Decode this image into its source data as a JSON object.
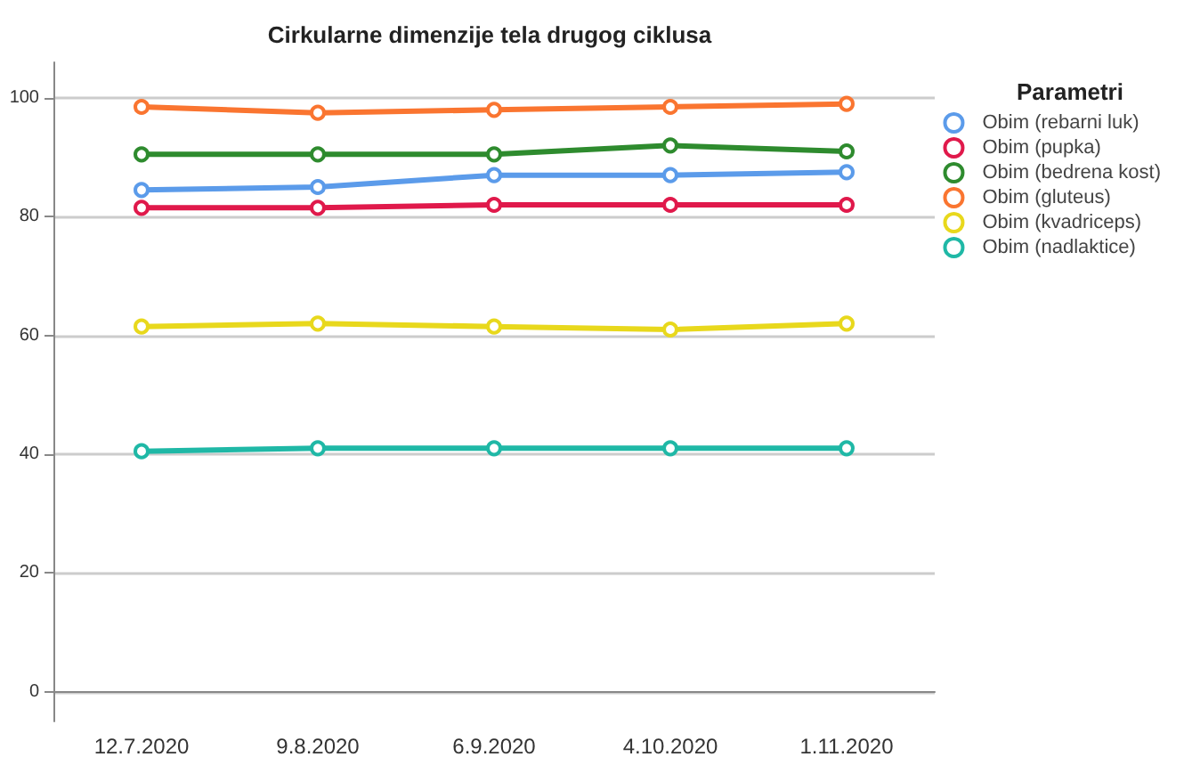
{
  "chart_data": {
    "type": "line",
    "title": "Cirkularne dimenzije tela drugog ciklusa",
    "legend_title": "Parametri",
    "categories": [
      "12.7.2020",
      "9.8.2020",
      "6.9.2020",
      "4.10.2020",
      "1.11.2020"
    ],
    "series": [
      {
        "name": "Obim (rebarni luk)",
        "color": "#5b9bea",
        "values": [
          84.5,
          85,
          87,
          87,
          87.5
        ]
      },
      {
        "name": "Obim (pupka)",
        "color": "#e0194b",
        "values": [
          81.5,
          81.5,
          82,
          82,
          82
        ]
      },
      {
        "name": "Obim (bedrena kost)",
        "color": "#2e8b2e",
        "values": [
          90.5,
          90.5,
          90.5,
          92,
          91
        ]
      },
      {
        "name": "Obim (gluteus)",
        "color": "#fa7530",
        "values": [
          98.5,
          97.5,
          98,
          98.5,
          99
        ]
      },
      {
        "name": "Obim (kvadriceps)",
        "color": "#e8d81c",
        "values": [
          61.5,
          62,
          61.5,
          61,
          62
        ]
      },
      {
        "name": "Obim (nadlaktice)",
        "color": "#1fb8a6",
        "values": [
          40.5,
          41,
          41,
          41,
          41
        ]
      }
    ],
    "ylim": [
      -5,
      106
    ],
    "yticks": [
      0,
      20,
      40,
      60,
      80,
      100
    ],
    "grid": "y",
    "legend": "right",
    "marker": "circle",
    "line_style": "solid"
  }
}
